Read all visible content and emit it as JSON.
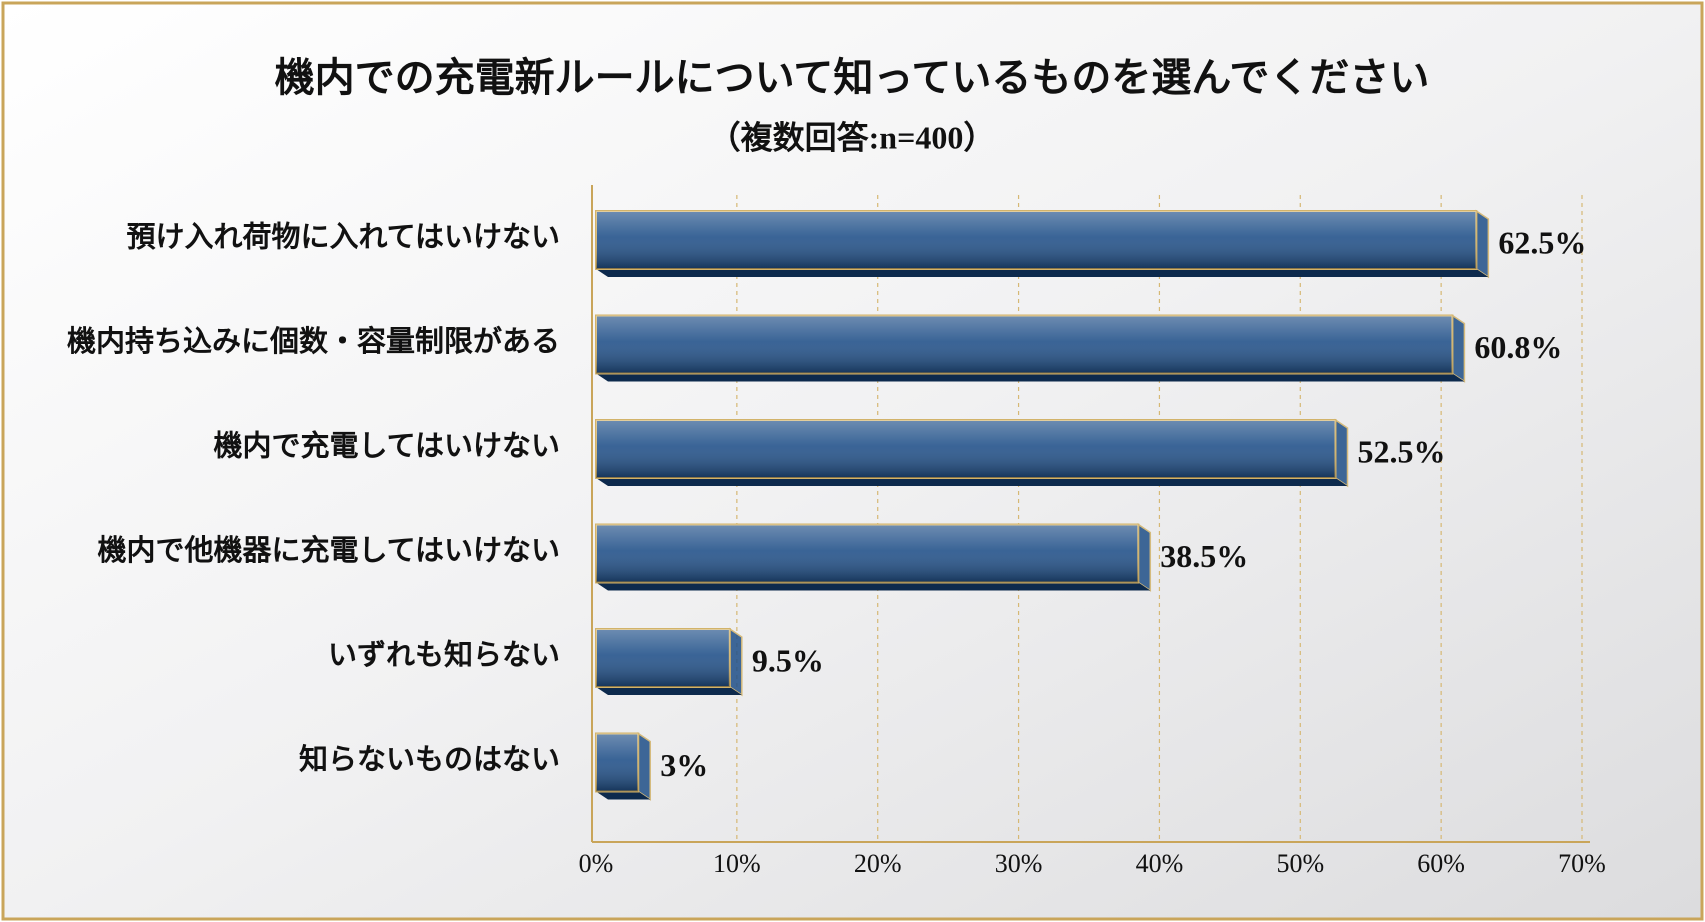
{
  "chart_data": {
    "type": "bar",
    "orientation": "horizontal",
    "title": "機内での充電新ルールについて知っているものを選んでください",
    "subtitle": "（複数回答:n=400）",
    "categories": [
      "預け入れ荷物に入れてはいけない",
      "機内持ち込みに個数・容量制限がある",
      "機内で充電してはいけない",
      "機内で他機器に充電してはいけない",
      "いずれも知らない",
      "知らないものはない"
    ],
    "values": [
      62.5,
      60.8,
      52.5,
      38.5,
      9.5,
      3
    ],
    "value_labels": [
      "62.5%",
      "60.8%",
      "52.5%",
      "38.5%",
      "9.5%",
      "3%"
    ],
    "color": "#1f4f88",
    "xlim": [
      0,
      70
    ],
    "xticks": [
      {
        "value": 0,
        "label": "0%"
      },
      {
        "value": 10,
        "label": "10%"
      },
      {
        "value": 20,
        "label": "20%"
      },
      {
        "value": 30,
        "label": "30%"
      },
      {
        "value": 40,
        "label": "40%"
      },
      {
        "value": 50,
        "label": "50%"
      },
      {
        "value": 60,
        "label": "60%"
      },
      {
        "value": 70,
        "label": "70%"
      }
    ],
    "grid": true
  }
}
